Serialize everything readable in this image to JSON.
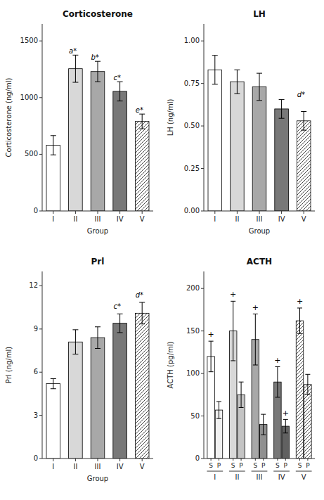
{
  "chart_data": [
    {
      "type": "bar",
      "title": "Corticosterone",
      "ylabel": "Corticosterone (ng/ml)",
      "xlabel": "Group",
      "categories": [
        "I",
        "II",
        "III",
        "IV",
        "V"
      ],
      "values": [
        580,
        1255,
        1230,
        1055,
        790
      ],
      "errors": [
        85,
        120,
        90,
        85,
        65
      ],
      "colors": [
        "#ffffff",
        "#d8d8d8",
        "#a8a8a8",
        "#787878",
        "hatch"
      ],
      "ylim": [
        0,
        1650
      ],
      "yticks": [
        0,
        500,
        1000,
        1500
      ],
      "grid": false,
      "annotations": [
        {
          "text": "a*",
          "x": "II",
          "y": 1385
        },
        {
          "text": "b*",
          "x": "III",
          "y": 1330
        },
        {
          "text": "c*",
          "x": "IV",
          "y": 1148
        },
        {
          "text": "e*",
          "x": "V",
          "y": 862
        }
      ]
    },
    {
      "type": "bar",
      "title": "LH",
      "ylabel": "LH (ng/ml)",
      "xlabel": "Group",
      "categories": [
        "I",
        "II",
        "III",
        "IV",
        "V"
      ],
      "values": [
        0.83,
        0.76,
        0.73,
        0.6,
        0.53
      ],
      "errors": [
        0.085,
        0.07,
        0.08,
        0.055,
        0.055
      ],
      "colors": [
        "#ffffff",
        "#d8d8d8",
        "#a8a8a8",
        "#787878",
        "hatch"
      ],
      "ylim": [
        0,
        1.1
      ],
      "yticks": [
        {
          "value": 0,
          "label": "0.00"
        },
        0.25,
        {
          "value": 0.5,
          "label": "0.50"
        },
        0.75,
        {
          "value": 1,
          "label": "1.00"
        }
      ],
      "grid": false,
      "annotations": [
        {
          "text": "d*",
          "x": "V",
          "y": 0.665
        }
      ]
    },
    {
      "type": "bar",
      "title": "Prl",
      "ylabel": "Prl (ng/ml)",
      "xlabel": "Group",
      "categories": [
        "I",
        "II",
        "III",
        "IV",
        "V"
      ],
      "values": [
        5.2,
        8.1,
        8.4,
        9.4,
        10.1
      ],
      "errors": [
        0.35,
        0.85,
        0.75,
        0.65,
        0.75
      ],
      "colors": [
        "#ffffff",
        "#d8d8d8",
        "#a8a8a8",
        "#787878",
        "hatch"
      ],
      "ylim": [
        0,
        13
      ],
      "yticks": [
        0,
        3,
        6,
        9,
        12
      ],
      "grid": false,
      "annotations": [
        {
          "text": "c*",
          "x": "IV",
          "y": 10.35
        },
        {
          "text": "d*",
          "x": "V",
          "y": 11.15
        }
      ]
    },
    {
      "type": "bar",
      "title": "ACTH",
      "ylabel": "ACTH (pg/ml)",
      "categories": [
        "I",
        "II",
        "III",
        "IV",
        "V"
      ],
      "series": [
        {
          "name": "S",
          "values": [
            120,
            150,
            140,
            90,
            162
          ],
          "errors": [
            18,
            35,
            30,
            18,
            15
          ],
          "colors": [
            "#ffffff",
            "#d8d8d8",
            "#a8a8a8",
            "#787878",
            "hatch"
          ]
        },
        {
          "name": "P",
          "values": [
            57,
            75,
            40,
            38,
            87
          ],
          "errors": [
            10,
            15,
            12,
            8,
            12
          ],
          "colors": [
            "#f0f0f0",
            "#c4c4c4",
            "#909090",
            "#616161",
            "hatch"
          ]
        }
      ],
      "ylim": [
        0,
        220
      ],
      "yticks": [
        0,
        50,
        100,
        150,
        200
      ],
      "grid": false,
      "annotations": [
        {
          "text": "+",
          "x": "I",
          "series": "S",
          "y": 142
        },
        {
          "text": "+",
          "x": "II",
          "series": "S",
          "y": 189
        },
        {
          "text": "+",
          "x": "III",
          "series": "S",
          "y": 174
        },
        {
          "text": "+",
          "x": "IV",
          "series": "S",
          "y": 112
        },
        {
          "text": "+",
          "x": "V",
          "series": "S",
          "y": 181
        },
        {
          "text": "+",
          "x": "IV",
          "series": "P",
          "y": 50
        }
      ]
    }
  ]
}
